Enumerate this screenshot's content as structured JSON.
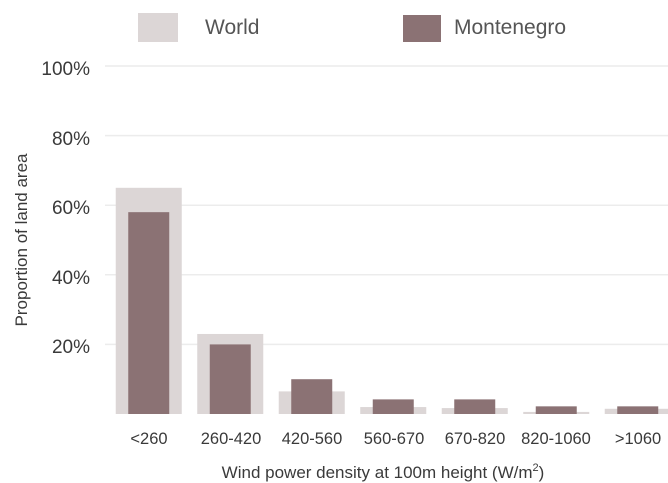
{
  "chart_data": {
    "type": "bar",
    "categories": [
      "<260",
      "260-420",
      "420-560",
      "560-670",
      "670-820",
      "820-1060",
      ">1060"
    ],
    "series": [
      {
        "name": "World",
        "values": [
          65,
          23,
          6.5,
          2,
          1.7,
          0.6,
          1.5
        ],
        "color": "#dcd6d6"
      },
      {
        "name": "Montenegro",
        "values": [
          58,
          20,
          10,
          4.2,
          4.2,
          2.2,
          2.2
        ],
        "color": "#8b7274"
      }
    ],
    "y_ticks": [
      "100%",
      "80%",
      "60%",
      "40%",
      "20%"
    ],
    "ylim": [
      0,
      100
    ],
    "ylabel": "Proportion of land area",
    "xlabel": "Wind power density at 100m height (W/m",
    "xlabel_superscript": "2",
    "xlabel_suffix": ")",
    "grid": true,
    "legend_position": "top"
  }
}
